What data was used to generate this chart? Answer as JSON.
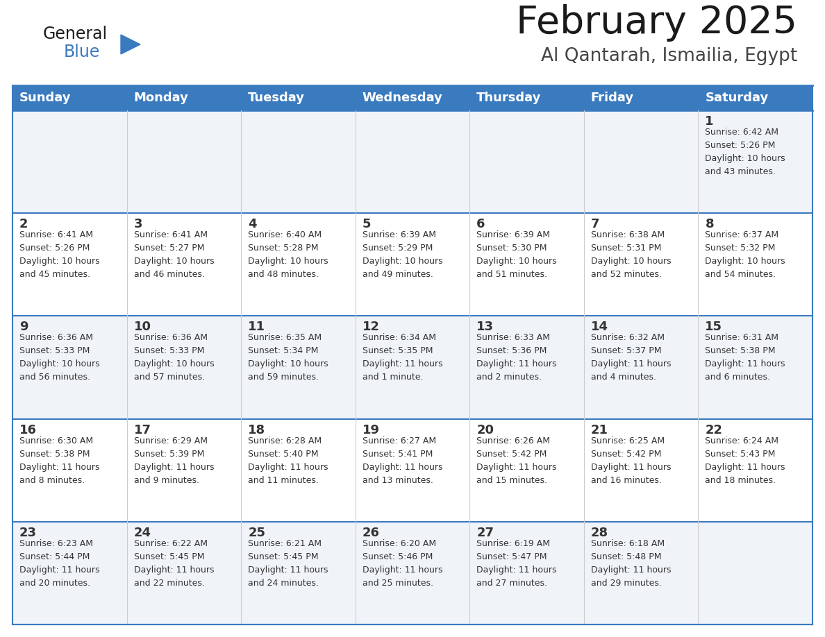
{
  "title": "February 2025",
  "subtitle": "Al Qantarah, Ismailia, Egypt",
  "header_bg_color": "#3a7abf",
  "header_text_color": "#ffffff",
  "row_odd_bg": "#f0f4f8",
  "row_even_bg": "#ffffff",
  "border_top_color": "#3a7abf",
  "border_inner_color": "#3a7abf",
  "cell_line_color": "#cccccc",
  "day_names": [
    "Sunday",
    "Monday",
    "Tuesday",
    "Wednesday",
    "Thursday",
    "Friday",
    "Saturday"
  ],
  "weeks": [
    [
      {
        "day": "",
        "info": ""
      },
      {
        "day": "",
        "info": ""
      },
      {
        "day": "",
        "info": ""
      },
      {
        "day": "",
        "info": ""
      },
      {
        "day": "",
        "info": ""
      },
      {
        "day": "",
        "info": ""
      },
      {
        "day": "1",
        "info": "Sunrise: 6:42 AM\nSunset: 5:26 PM\nDaylight: 10 hours\nand 43 minutes."
      }
    ],
    [
      {
        "day": "2",
        "info": "Sunrise: 6:41 AM\nSunset: 5:26 PM\nDaylight: 10 hours\nand 45 minutes."
      },
      {
        "day": "3",
        "info": "Sunrise: 6:41 AM\nSunset: 5:27 PM\nDaylight: 10 hours\nand 46 minutes."
      },
      {
        "day": "4",
        "info": "Sunrise: 6:40 AM\nSunset: 5:28 PM\nDaylight: 10 hours\nand 48 minutes."
      },
      {
        "day": "5",
        "info": "Sunrise: 6:39 AM\nSunset: 5:29 PM\nDaylight: 10 hours\nand 49 minutes."
      },
      {
        "day": "6",
        "info": "Sunrise: 6:39 AM\nSunset: 5:30 PM\nDaylight: 10 hours\nand 51 minutes."
      },
      {
        "day": "7",
        "info": "Sunrise: 6:38 AM\nSunset: 5:31 PM\nDaylight: 10 hours\nand 52 minutes."
      },
      {
        "day": "8",
        "info": "Sunrise: 6:37 AM\nSunset: 5:32 PM\nDaylight: 10 hours\nand 54 minutes."
      }
    ],
    [
      {
        "day": "9",
        "info": "Sunrise: 6:36 AM\nSunset: 5:33 PM\nDaylight: 10 hours\nand 56 minutes."
      },
      {
        "day": "10",
        "info": "Sunrise: 6:36 AM\nSunset: 5:33 PM\nDaylight: 10 hours\nand 57 minutes."
      },
      {
        "day": "11",
        "info": "Sunrise: 6:35 AM\nSunset: 5:34 PM\nDaylight: 10 hours\nand 59 minutes."
      },
      {
        "day": "12",
        "info": "Sunrise: 6:34 AM\nSunset: 5:35 PM\nDaylight: 11 hours\nand 1 minute."
      },
      {
        "day": "13",
        "info": "Sunrise: 6:33 AM\nSunset: 5:36 PM\nDaylight: 11 hours\nand 2 minutes."
      },
      {
        "day": "14",
        "info": "Sunrise: 6:32 AM\nSunset: 5:37 PM\nDaylight: 11 hours\nand 4 minutes."
      },
      {
        "day": "15",
        "info": "Sunrise: 6:31 AM\nSunset: 5:38 PM\nDaylight: 11 hours\nand 6 minutes."
      }
    ],
    [
      {
        "day": "16",
        "info": "Sunrise: 6:30 AM\nSunset: 5:38 PM\nDaylight: 11 hours\nand 8 minutes."
      },
      {
        "day": "17",
        "info": "Sunrise: 6:29 AM\nSunset: 5:39 PM\nDaylight: 11 hours\nand 9 minutes."
      },
      {
        "day": "18",
        "info": "Sunrise: 6:28 AM\nSunset: 5:40 PM\nDaylight: 11 hours\nand 11 minutes."
      },
      {
        "day": "19",
        "info": "Sunrise: 6:27 AM\nSunset: 5:41 PM\nDaylight: 11 hours\nand 13 minutes."
      },
      {
        "day": "20",
        "info": "Sunrise: 6:26 AM\nSunset: 5:42 PM\nDaylight: 11 hours\nand 15 minutes."
      },
      {
        "day": "21",
        "info": "Sunrise: 6:25 AM\nSunset: 5:42 PM\nDaylight: 11 hours\nand 16 minutes."
      },
      {
        "day": "22",
        "info": "Sunrise: 6:24 AM\nSunset: 5:43 PM\nDaylight: 11 hours\nand 18 minutes."
      }
    ],
    [
      {
        "day": "23",
        "info": "Sunrise: 6:23 AM\nSunset: 5:44 PM\nDaylight: 11 hours\nand 20 minutes."
      },
      {
        "day": "24",
        "info": "Sunrise: 6:22 AM\nSunset: 5:45 PM\nDaylight: 11 hours\nand 22 minutes."
      },
      {
        "day": "25",
        "info": "Sunrise: 6:21 AM\nSunset: 5:45 PM\nDaylight: 11 hours\nand 24 minutes."
      },
      {
        "day": "26",
        "info": "Sunrise: 6:20 AM\nSunset: 5:46 PM\nDaylight: 11 hours\nand 25 minutes."
      },
      {
        "day": "27",
        "info": "Sunrise: 6:19 AM\nSunset: 5:47 PM\nDaylight: 11 hours\nand 27 minutes."
      },
      {
        "day": "28",
        "info": "Sunrise: 6:18 AM\nSunset: 5:48 PM\nDaylight: 11 hours\nand 29 minutes."
      },
      {
        "day": "",
        "info": ""
      }
    ]
  ],
  "logo_general_color": "#1a1a1a",
  "logo_blue_color": "#3a7abf",
  "logo_triangle_color": "#3a7abf",
  "title_color": "#1a1a1a",
  "subtitle_color": "#444444",
  "day_number_color": "#333333",
  "info_text_color": "#333333"
}
